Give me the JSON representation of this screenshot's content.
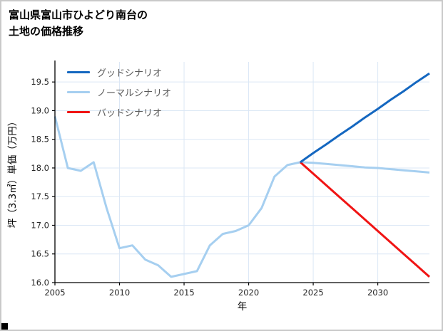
{
  "title": {
    "line1": "富山県富山市ひよどり南台の",
    "line2": "土地の価格推移"
  },
  "legend": {
    "items": [
      {
        "id": "good",
        "label": "グッドシナリオ",
        "color": "#1467c0"
      },
      {
        "id": "normal",
        "label": "ノーマルシナリオ",
        "color": "#a6cff0"
      },
      {
        "id": "bad",
        "label": "バッドシナリオ",
        "color": "#f01414"
      }
    ]
  },
  "chart_data": {
    "type": "line",
    "title": "富山県富山市ひよどり南台の土地の価格推移",
    "xlabel": "年",
    "ylabel": "坪（3.3㎡）単価（万円）",
    "xlim": [
      2005,
      2034
    ],
    "ylim": [
      16.0,
      19.85
    ],
    "xticks": [
      2005,
      2010,
      2015,
      2020,
      2025,
      2030
    ],
    "yticks": [
      16.0,
      16.5,
      17.0,
      17.5,
      18.0,
      18.5,
      19.0,
      19.5
    ],
    "grid": true,
    "legend_position": "upper-left",
    "colors": {
      "grid": "#dbe7f5",
      "axis": "#000000",
      "tick_label": "#262626",
      "axis_label": "#000000"
    },
    "series": [
      {
        "id": "normal",
        "name": "ノーマルシナリオ",
        "color": "#a6cff0",
        "x": [
          2005,
          2006,
          2007,
          2008,
          2009,
          2010,
          2011,
          2012,
          2013,
          2014,
          2015,
          2016,
          2017,
          2018,
          2019,
          2020,
          2021,
          2022,
          2023,
          2024,
          2025,
          2026,
          2027,
          2028,
          2029,
          2030,
          2031,
          2032,
          2033,
          2034
        ],
        "values": [
          18.9,
          18.0,
          17.95,
          18.1,
          17.3,
          16.6,
          16.65,
          16.4,
          16.3,
          16.1,
          16.15,
          16.2,
          16.65,
          16.85,
          16.9,
          17.0,
          17.3,
          17.85,
          18.05,
          18.1,
          18.09,
          18.07,
          18.05,
          18.03,
          18.01,
          18.0,
          17.98,
          17.96,
          17.94,
          17.92
        ]
      },
      {
        "id": "bad",
        "name": "バッドシナリオ",
        "color": "#f01414",
        "x": [
          2024,
          2025,
          2026,
          2027,
          2028,
          2029,
          2030,
          2031,
          2032,
          2033,
          2034
        ],
        "values": [
          18.1,
          17.9,
          17.7,
          17.5,
          17.3,
          17.1,
          16.9,
          16.7,
          16.5,
          16.3,
          16.1
        ]
      },
      {
        "id": "good",
        "name": "グッドシナリオ",
        "color": "#1467c0",
        "x": [
          2024,
          2025,
          2026,
          2027,
          2028,
          2029,
          2030,
          2031,
          2032,
          2033,
          2034
        ],
        "values": [
          18.1,
          18.26,
          18.41,
          18.57,
          18.72,
          18.88,
          19.03,
          19.19,
          19.34,
          19.5,
          19.65
        ]
      }
    ]
  }
}
